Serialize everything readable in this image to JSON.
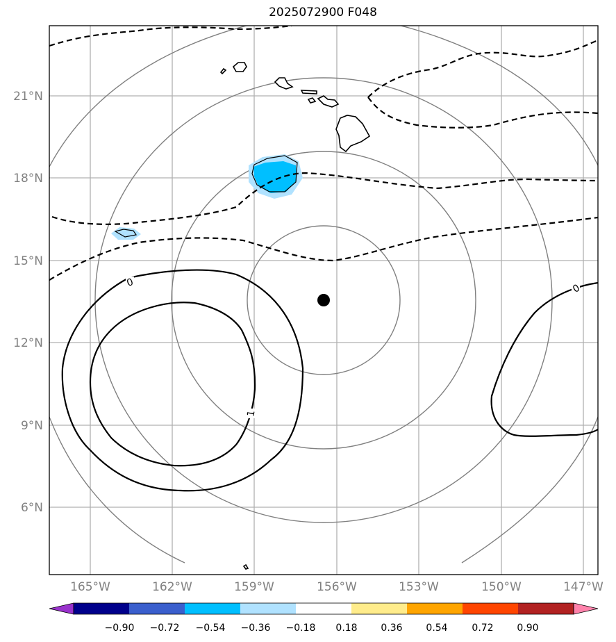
{
  "title": "2025072900 F048",
  "lon_ticks": [
    "165°W",
    "162°W",
    "159°W",
    "156°W",
    "153°W",
    "150°W",
    "147°W"
  ],
  "lat_ticks": [
    "21°N",
    "18°N",
    "15°N",
    "12°N",
    "9°N",
    "6°N"
  ],
  "colorbar": {
    "tick_labels": [
      "−0.90",
      "−0.72",
      "−0.54",
      "−0.36",
      "−0.18",
      "0.18",
      "0.36",
      "0.54",
      "0.72",
      "0.90"
    ],
    "colors": [
      "#9932cc",
      "#00008b",
      "#3a5fcd",
      "#00bfff",
      "#b0e2ff",
      "#ffffff",
      "#ffec8b",
      "#ffa500",
      "#ff4500",
      "#b22222",
      "#ff82ab"
    ]
  },
  "contour_labels": [
    "0",
    "1",
    "0"
  ],
  "colors": {
    "grid": "#b0b0b0",
    "range_rings": "#808080",
    "tick_text": "#808080",
    "center_marker": "#000000"
  }
}
